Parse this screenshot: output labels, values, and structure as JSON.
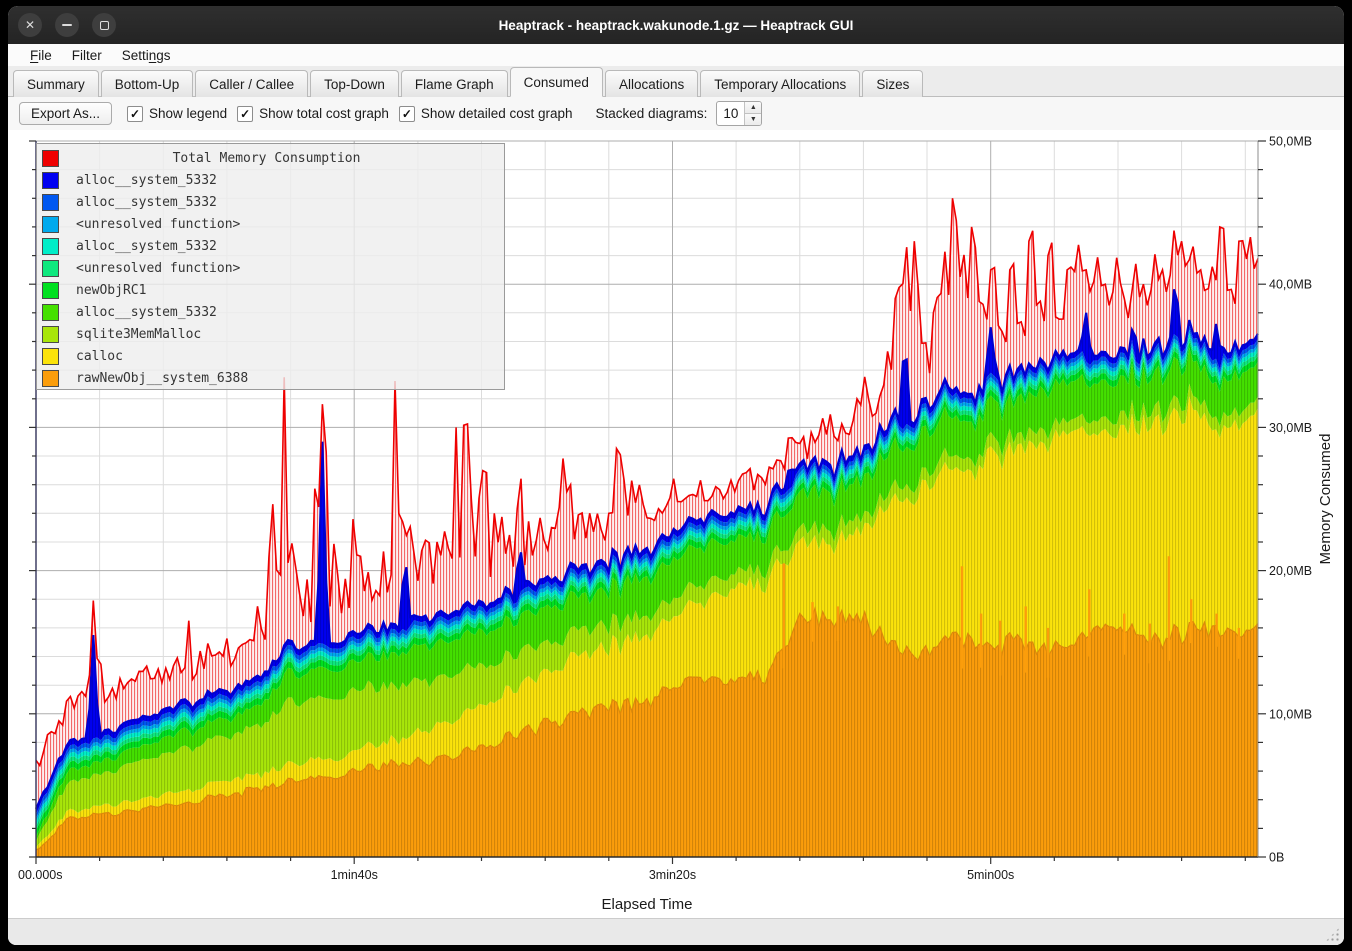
{
  "window": {
    "title": "Heaptrack - heaptrack.wakunode.1.gz — Heaptrack GUI",
    "close_icon": "✕"
  },
  "menubar": {
    "items": [
      {
        "label": "File",
        "underline": 0
      },
      {
        "label": "Filter",
        "underline": -1
      },
      {
        "label": "Settings",
        "underline": 5
      }
    ]
  },
  "tabs": [
    {
      "label": "Summary",
      "active": false
    },
    {
      "label": "Bottom-Up",
      "active": false
    },
    {
      "label": "Caller / Callee",
      "active": false
    },
    {
      "label": "Top-Down",
      "active": false
    },
    {
      "label": "Flame Graph",
      "active": false
    },
    {
      "label": "Consumed",
      "active": true
    },
    {
      "label": "Allocations",
      "active": false
    },
    {
      "label": "Temporary Allocations",
      "active": false
    },
    {
      "label": "Sizes",
      "active": false
    }
  ],
  "toolbar": {
    "export_label": "Export As...",
    "check_icon": "✓",
    "checkboxes": [
      {
        "label": "Show legend",
        "checked": true
      },
      {
        "label": "Show total cost graph",
        "checked": true
      },
      {
        "label": "Show detailed cost graph",
        "checked": true
      }
    ],
    "stacked_label": "Stacked diagrams:",
    "stacked_value": "10",
    "spin_up_icon": "▲",
    "spin_down_icon": "▼"
  },
  "chart_data": {
    "type": "area",
    "stacked": true,
    "title": "Total Memory Consumption",
    "xlabel": "Elapsed Time",
    "ylabel": "Memory Consumed",
    "x_range_seconds": [
      0,
      384
    ],
    "y_range_mb": [
      0,
      50
    ],
    "minor_x_step": 20,
    "minor_y_step": 2,
    "x_ticks": [
      {
        "t": 0,
        "label": "00.000s"
      },
      {
        "t": 100,
        "label": "1min40s"
      },
      {
        "t": 200,
        "label": "3min20s"
      },
      {
        "t": 300,
        "label": "5min00s"
      }
    ],
    "y_ticks": [
      {
        "mb": 0,
        "label": "0B"
      },
      {
        "mb": 10,
        "label": "10,0MB"
      },
      {
        "mb": 20,
        "label": "20,0MB"
      },
      {
        "mb": 30,
        "label": "30,0MB"
      },
      {
        "mb": 40,
        "label": "40,0MB"
      },
      {
        "mb": 50,
        "label": "50,0MB"
      }
    ],
    "keyframe_step_seconds": 10,
    "series": [
      {
        "name": "rawNewObj__system_6388",
        "color": "#fb9d0b",
        "noise": [
          0.15,
          0.05
        ],
        "keys": [
          0.4,
          2.6,
          3.0,
          3.3,
          3.6,
          4.0,
          4.3,
          4.7,
          5.5,
          5.6,
          5.9,
          6.6,
          6.6,
          7.0,
          7.6,
          8.6,
          9.2,
          9.7,
          10.6,
          10.6,
          11.6,
          12.6,
          12.2,
          12.8,
          16.4,
          17.0,
          16.6,
          14.4,
          14.4,
          15.4,
          14.6,
          15.0,
          14.4,
          15.6,
          16.2,
          15.2,
          15.6,
          16.2,
          15.8
        ]
      },
      {
        "name": "calloc",
        "color": "#fbe30b",
        "noise": [
          0.12,
          0.05
        ],
        "keys": [
          0.2,
          0.5,
          0.6,
          0.7,
          0.8,
          0.9,
          1.0,
          1.0,
          1.2,
          1.3,
          1.4,
          1.6,
          2.0,
          2.6,
          3.0,
          3.2,
          3.6,
          4.0,
          4.2,
          4.6,
          5.0,
          5.4,
          6.4,
          6.6,
          5.4,
          5.0,
          6.2,
          10.4,
          11.6,
          11.6,
          13.2,
          13.6,
          14.8,
          14.2,
          13.6,
          15.2,
          15.4,
          14.2,
          14.8
        ]
      },
      {
        "name": "sqlite3MemMalloc",
        "color": "#a8e60a",
        "noise": [
          0.1,
          0.04
        ],
        "keys": [
          0.5,
          2.0,
          2.2,
          2.6,
          2.8,
          3.0,
          3.0,
          3.4,
          4.4,
          4.2,
          4.2,
          4.0,
          3.6,
          3.2,
          2.8,
          2.4,
          2.0,
          1.8,
          1.6,
          1.4,
          1.2,
          1.2,
          1.0,
          1.0,
          1.0,
          1.0,
          0.9,
          0.9,
          0.9,
          0.9,
          0.9,
          0.9,
          0.9,
          0.9,
          0.9,
          0.9,
          0.9,
          0.9,
          0.9
        ]
      },
      {
        "name": "alloc__system_5332",
        "color": "#44e000",
        "noise": [
          0.08,
          0.05
        ],
        "keys": [
          0.3,
          0.8,
          0.9,
          1.0,
          1.1,
          1.2,
          1.2,
          1.4,
          2.0,
          2.0,
          2.0,
          2.2,
          2.4,
          2.4,
          2.4,
          2.4,
          2.4,
          2.4,
          2.4,
          2.6,
          2.8,
          2.6,
          2.4,
          2.4,
          2.6,
          2.6,
          2.6,
          2.8,
          2.8,
          2.6,
          2.6,
          2.6,
          2.8,
          2.6,
          2.6,
          2.4,
          2.6,
          2.4,
          2.6
        ]
      },
      {
        "name": "newObjRC1",
        "color": "#00e020",
        "noise": [
          0.02,
          0.03
        ],
        "keys": [
          0.45
        ]
      },
      {
        "name": "<unresolved function>",
        "color": "#0ee87e",
        "noise": [
          0.01,
          0.02
        ],
        "keys": [
          0.3
        ]
      },
      {
        "name": "alloc__system_5332",
        "color": "#00eec8",
        "noise": [
          0.01,
          0.02
        ],
        "keys": [
          0.3
        ]
      },
      {
        "name": "<unresolved function>",
        "color": "#00aaee",
        "noise": [
          0.01,
          0.02
        ],
        "keys": [
          0.25
        ]
      },
      {
        "name": "alloc__system_5332",
        "color": "#0057f0",
        "noise": [
          0.01,
          0.02
        ],
        "keys": [
          0.3
        ]
      },
      {
        "name": "alloc__system_5332",
        "color": "#0000f0",
        "noise": [
          0.02,
          0.02
        ],
        "keys": [
          0.35
        ]
      }
    ],
    "total": {
      "name": "Total Memory Consumption",
      "color": "#ee0000",
      "fill_bg": "#fdf0f0",
      "fill_line": "#f36868",
      "offset": [
        [
          70,
          2.6
        ],
        [
          260,
          1.8
        ],
        [
          10000,
          1.1
        ]
      ],
      "amp": [
        [
          260,
          1.5
        ],
        [
          10000,
          2.6
        ]
      ],
      "spikes": [
        [
          8,
          9.5
        ],
        [
          13,
          10.5
        ],
        [
          18,
          17
        ],
        [
          20,
          15
        ],
        [
          24,
          11
        ],
        [
          28,
          12.5
        ],
        [
          31,
          11
        ],
        [
          34,
          13.5
        ],
        [
          38,
          10
        ],
        [
          43,
          10.5
        ],
        [
          48,
          16.5
        ],
        [
          52,
          11
        ],
        [
          57,
          11.5
        ],
        [
          60,
          12
        ],
        [
          63,
          13.5
        ],
        [
          66,
          12
        ],
        [
          70,
          19
        ],
        [
          74,
          28
        ],
        [
          76,
          22
        ],
        [
          78,
          33.5
        ],
        [
          80,
          24
        ],
        [
          82,
          22
        ],
        [
          85,
          20
        ],
        [
          88,
          29
        ],
        [
          91,
          29.5
        ],
        [
          94,
          24
        ],
        [
          97,
          20
        ],
        [
          100,
          26
        ],
        [
          102,
          21
        ],
        [
          104,
          21
        ],
        [
          107,
          19
        ],
        [
          109,
          22
        ],
        [
          111,
          20
        ],
        [
          113,
          35.5
        ],
        [
          115,
          24
        ],
        [
          118,
          25
        ],
        [
          121,
          22
        ],
        [
          123,
          25
        ],
        [
          126,
          22
        ],
        [
          128,
          24.5
        ],
        [
          130,
          23
        ],
        [
          132,
          30
        ],
        [
          135,
          37
        ],
        [
          137,
          26
        ],
        [
          139,
          26
        ],
        [
          141,
          32
        ],
        [
          144,
          24
        ],
        [
          146,
          25.5
        ],
        [
          149,
          23
        ],
        [
          152,
          28
        ],
        [
          155,
          24
        ],
        [
          158,
          25
        ],
        [
          160,
          23
        ],
        [
          162,
          23
        ],
        [
          164,
          26
        ],
        [
          166,
          30.5
        ],
        [
          168,
          26
        ],
        [
          171,
          26
        ],
        [
          174,
          24
        ],
        [
          176,
          25
        ],
        [
          178,
          23.5
        ],
        [
          180,
          24
        ],
        [
          183,
          32.5
        ],
        [
          185,
          27
        ],
        [
          187,
          27
        ],
        [
          190,
          27.5
        ],
        [
          193,
          24
        ],
        [
          196,
          25
        ],
        [
          198,
          24
        ],
        [
          200,
          27.5
        ],
        [
          203,
          24
        ],
        [
          205,
          24
        ],
        [
          207,
          23
        ],
        [
          209,
          22.5
        ],
        [
          212,
          25
        ],
        [
          215,
          23.5
        ],
        [
          218,
          27
        ],
        [
          221,
          24
        ],
        [
          224,
          25.5
        ],
        [
          226,
          24
        ],
        [
          228,
          24
        ],
        [
          230,
          28
        ],
        [
          232,
          26
        ],
        [
          234,
          26
        ],
        [
          237,
          30.5
        ],
        [
          239,
          28
        ],
        [
          241,
          27
        ],
        [
          243,
          28
        ],
        [
          245,
          26
        ],
        [
          247,
          28
        ],
        [
          250,
          32
        ],
        [
          252,
          29
        ],
        [
          254,
          28
        ],
        [
          256,
          30
        ],
        [
          258,
          32
        ],
        [
          260,
          35
        ],
        [
          262,
          33
        ],
        [
          264,
          31
        ],
        [
          266,
          34
        ],
        [
          268,
          37
        ],
        [
          270,
          39
        ],
        [
          271,
          41
        ],
        [
          273,
          43
        ],
        [
          274,
          45
        ],
        [
          276,
          43
        ],
        [
          277,
          41
        ],
        [
          279,
          38
        ],
        [
          280,
          36
        ],
        [
          282,
          38
        ],
        [
          283,
          40
        ],
        [
          285,
          43
        ],
        [
          286,
          45
        ],
        [
          288,
          46
        ],
        [
          289,
          46
        ],
        [
          291,
          45
        ],
        [
          292,
          45
        ],
        [
          294,
          44
        ],
        [
          295,
          44
        ],
        [
          297,
          42
        ],
        [
          298,
          40
        ],
        [
          300,
          41
        ],
        [
          301,
          42
        ],
        [
          303,
          39
        ],
        [
          304,
          38
        ],
        [
          306,
          41
        ],
        [
          307,
          42.5
        ],
        [
          309,
          39
        ],
        [
          310,
          38
        ],
        [
          312,
          43
        ],
        [
          313,
          45
        ],
        [
          315,
          41
        ],
        [
          316,
          40
        ],
        [
          318,
          42
        ],
        [
          319,
          44
        ],
        [
          321,
          39
        ],
        [
          322,
          38
        ],
        [
          324,
          41
        ],
        [
          325,
          42
        ],
        [
          327,
          44
        ],
        [
          328,
          45
        ],
        [
          330,
          41
        ],
        [
          331,
          40
        ],
        [
          333,
          43
        ],
        [
          334,
          44
        ],
        [
          336,
          40
        ],
        [
          337,
          39
        ],
        [
          339,
          42
        ],
        [
          340,
          44
        ],
        [
          342,
          39
        ],
        [
          343,
          38
        ],
        [
          345,
          41
        ],
        [
          346,
          43
        ],
        [
          348,
          40
        ],
        [
          349,
          39
        ],
        [
          351,
          42
        ],
        [
          352,
          44
        ],
        [
          354,
          41
        ],
        [
          355,
          40
        ],
        [
          357,
          43
        ],
        [
          358,
          45
        ],
        [
          360,
          43
        ],
        [
          361,
          42
        ],
        [
          363,
          44
        ],
        [
          364,
          44.5
        ],
        [
          366,
          41
        ],
        [
          367,
          40
        ],
        [
          369,
          42
        ],
        [
          370,
          43
        ],
        [
          372,
          44
        ],
        [
          373,
          45
        ],
        [
          375,
          42
        ],
        [
          376,
          41
        ],
        [
          378,
          43
        ],
        [
          379,
          44
        ],
        [
          381,
          45
        ],
        [
          382,
          45.5
        ],
        [
          383.5,
          44
        ]
      ]
    },
    "stack_spikes": [
      [
        18,
        15.5
      ],
      [
        90,
        29
      ],
      [
        116,
        21.5
      ],
      [
        152,
        22
      ],
      [
        237,
        27.5
      ],
      [
        273,
        37
      ],
      [
        300,
        37
      ],
      [
        330,
        38
      ],
      [
        345,
        37
      ],
      [
        358,
        40.5
      ],
      [
        371,
        37.5
      ]
    ],
    "orange_spikes": [
      [
        235,
        20.5
      ],
      [
        244,
        17.8
      ],
      [
        252,
        17.5
      ],
      [
        291,
        20.3
      ],
      [
        297,
        17
      ],
      [
        303,
        16.5
      ],
      [
        311,
        17.5
      ],
      [
        318,
        16
      ],
      [
        331,
        18.7
      ],
      [
        342,
        17
      ],
      [
        350,
        16.3
      ],
      [
        356,
        21
      ],
      [
        363,
        18
      ],
      [
        371,
        17
      ],
      [
        378,
        16
      ]
    ]
  }
}
